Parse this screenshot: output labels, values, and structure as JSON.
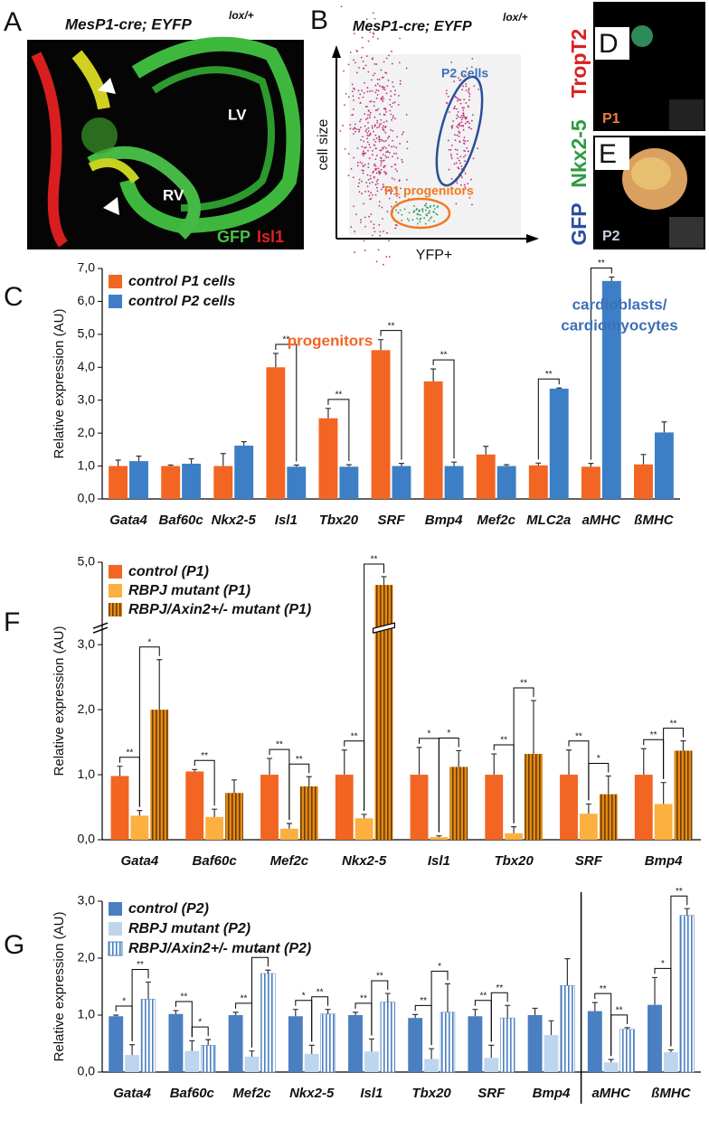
{
  "panels": {
    "A": {
      "letter": "A",
      "title": "MesP1-cre; EYFP",
      "title_sup": "lox/+",
      "labels": [
        "LV",
        "RV"
      ],
      "stains": [
        "GFP",
        "Isl1"
      ]
    },
    "B": {
      "letter": "B",
      "title": "MesP1-cre; EYFP",
      "title_sup": "lox/+",
      "ylabel": "cell size",
      "xlabel": "YFP+",
      "gates": [
        "P2 cells",
        "P1 progenitors"
      ]
    },
    "D": {
      "letter": "D",
      "label": "P1"
    },
    "E": {
      "letter": "E",
      "label": "P2"
    },
    "stains": [
      "GFP",
      "Nkx2-5",
      "TropT2"
    ]
  },
  "chart_data": [
    {
      "type": "bar",
      "panel": "C",
      "ylabel": "Relative expression (AU)",
      "categories": [
        "Gata4",
        "Baf60c",
        "Nkx2-5",
        "Isl1",
        "Tbx20",
        "SRF",
        "Bmp4",
        "Mef2c",
        "MLC2a",
        "aMHC",
        "ßMHC"
      ],
      "series": [
        {
          "name": "control P1 cells",
          "color": "#f26522",
          "values": [
            1.0,
            1.0,
            1.0,
            4.0,
            2.45,
            4.52,
            3.57,
            1.35,
            1.02,
            0.98,
            1.05
          ],
          "errors": [
            0.18,
            0.03,
            0.38,
            0.42,
            0.3,
            0.32,
            0.38,
            0.25,
            0.07,
            0.1,
            0.3
          ]
        },
        {
          "name": "control P2 cells",
          "color": "#3d7fc6",
          "values": [
            1.15,
            1.07,
            1.62,
            0.98,
            0.98,
            1.0,
            1.0,
            1.0,
            3.35,
            6.62,
            2.02
          ],
          "errors": [
            0.15,
            0.15,
            0.12,
            0.05,
            0.06,
            0.08,
            0.12,
            0.04,
            0.02,
            0.12,
            0.32
          ]
        }
      ],
      "significance": [
        null,
        null,
        null,
        [
          "**"
        ],
        [
          "**"
        ],
        [
          "**"
        ],
        [
          "**"
        ],
        null,
        [
          "**"
        ],
        [
          "**"
        ],
        null
      ],
      "annotations": [
        {
          "text": "progenitors",
          "color": "#f26522"
        },
        {
          "text": "cardioblasts/",
          "color": "#3d6fb6"
        },
        {
          "text": "cardiomyocytes",
          "color": "#3d6fb6"
        }
      ],
      "ylim": [
        0,
        7
      ],
      "yticks": [
        {
          "value": 0,
          "label": "0,0"
        },
        {
          "value": 1,
          "label": "1,0"
        },
        {
          "value": 2,
          "label": "2,0"
        },
        {
          "value": 3,
          "label": "3,0"
        },
        {
          "value": 4,
          "label": "4,0"
        },
        {
          "value": 5,
          "label": "5,0"
        },
        {
          "value": 6,
          "label": "6,0"
        },
        {
          "value": 7,
          "label": "7,0"
        }
      ],
      "legend": "upper left"
    },
    {
      "type": "bar",
      "panel": "F",
      "ylabel": "Relative expression (AU)",
      "categories": [
        "Gata4",
        "Baf60c",
        "Mef2c",
        "Nkx2-5",
        "Isl1",
        "Tbx20",
        "SRF",
        "Bmp4"
      ],
      "series": [
        {
          "name": "control (P1)",
          "color": "#f26522",
          "values": [
            0.98,
            1.05,
            1.0,
            1.0,
            1.0,
            1.0,
            1.0,
            1.0
          ],
          "errors": [
            0.15,
            0.03,
            0.25,
            0.38,
            0.42,
            0.32,
            0.38,
            0.4
          ]
        },
        {
          "name": "RBPJ mutant (P1)",
          "color": "#fbb040",
          "values": [
            0.37,
            0.35,
            0.17,
            0.33,
            0.04,
            0.1,
            0.4,
            0.55
          ],
          "errors": [
            0.08,
            0.12,
            0.08,
            0.06,
            0.02,
            0.1,
            0.15,
            0.33
          ]
        },
        {
          "name": "RBPJ/Axin2+/- mutant (P1)",
          "color": "#e58a12",
          "hatch": "#6b3d08",
          "values": [
            2.0,
            0.72,
            0.82,
            4.45,
            1.12,
            1.32,
            0.7,
            1.37
          ],
          "errors": [
            0.77,
            0.2,
            0.15,
            0.2,
            0.25,
            0.82,
            0.28,
            0.15
          ]
        }
      ],
      "significance": [
        [
          "**",
          "*"
        ],
        [
          "**",
          null
        ],
        [
          "**",
          "**"
        ],
        [
          "**",
          "**"
        ],
        [
          "*",
          "*"
        ],
        [
          "**",
          "**"
        ],
        [
          "**",
          "*"
        ],
        [
          "**",
          "**"
        ]
      ],
      "ylim": [
        0,
        5
      ],
      "ybreak": 3,
      "yticks": [
        {
          "value": 0,
          "label": "0,0"
        },
        {
          "value": 1,
          "label": "1,0"
        },
        {
          "value": 2,
          "label": "2,0"
        },
        {
          "value": 3,
          "label": "3,0"
        },
        {
          "value": 5,
          "label": "5,0"
        }
      ],
      "legend": "upper left"
    },
    {
      "type": "bar",
      "panel": "G",
      "ylabel": "Relative expression (AU)",
      "categories": [
        "Gata4",
        "Baf60c",
        "Mef2c",
        "Nkx2-5",
        "Isl1",
        "Tbx20",
        "SRF",
        "Bmp4",
        "aMHC",
        "ßMHC"
      ],
      "series": [
        {
          "name": "control (P2)",
          "color": "#4a7fc1",
          "values": [
            0.98,
            1.02,
            1.0,
            0.98,
            1.0,
            0.95,
            0.98,
            1.0,
            1.07,
            1.18
          ],
          "errors": [
            0.02,
            0.06,
            0.05,
            0.12,
            0.05,
            0.06,
            0.12,
            0.12,
            0.15,
            0.48
          ]
        },
        {
          "name": "RBPJ mutant (P2)",
          "color": "#bdd5ee",
          "values": [
            0.3,
            0.37,
            0.27,
            0.32,
            0.36,
            0.23,
            0.25,
            0.65,
            0.17,
            0.35
          ],
          "errors": [
            0.18,
            0.18,
            0.1,
            0.15,
            0.22,
            0.18,
            0.22,
            0.25,
            0.05,
            0.04
          ]
        },
        {
          "name": "RBPJ/Axin2+/- mutant (P2)",
          "color": "#ffffff",
          "hatch": "#4a7fc1",
          "values": [
            1.28,
            0.47,
            1.73,
            1.02,
            1.23,
            1.05,
            0.95,
            1.52,
            0.75,
            2.75
          ],
          "errors": [
            0.3,
            0.1,
            0.06,
            0.08,
            0.15,
            0.5,
            0.22,
            0.47,
            0.03,
            0.12
          ]
        }
      ],
      "significance": [
        [
          "*",
          "**"
        ],
        [
          "**",
          "*"
        ],
        [
          "**",
          "**"
        ],
        [
          "*",
          "**"
        ],
        [
          "**",
          "**"
        ],
        [
          "**",
          "*"
        ],
        [
          "**",
          "**"
        ],
        null,
        [
          "**",
          "**"
        ],
        [
          "*",
          "**"
        ]
      ],
      "ylim": [
        0,
        3
      ],
      "yticks": [
        {
          "value": 0,
          "label": "0,0"
        },
        {
          "value": 1,
          "label": "1,0"
        },
        {
          "value": 2,
          "label": "2,0"
        },
        {
          "value": 3,
          "label": "3,0"
        }
      ],
      "legend": "upper left"
    }
  ]
}
